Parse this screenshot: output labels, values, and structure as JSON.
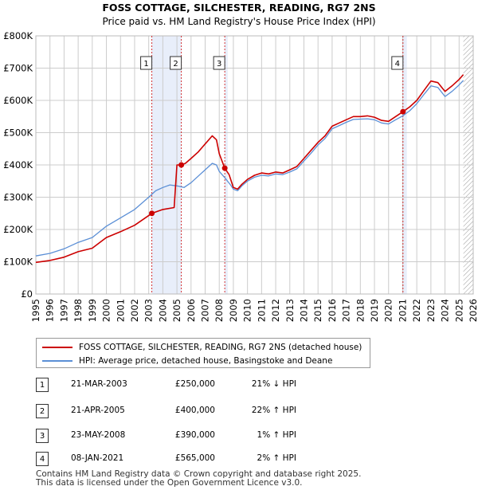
{
  "chart_data": {
    "type": "line",
    "title": "FOSS COTTAGE, SILCHESTER, READING, RG7 2NS",
    "subtitle": "Price paid vs. HM Land Registry's House Price Index (HPI)",
    "x_range": [
      1995,
      2026
    ],
    "ylim": [
      0,
      800000
    ],
    "y_ticks": [
      0,
      100000,
      200000,
      300000,
      400000,
      500000,
      600000,
      700000,
      800000
    ],
    "y_tick_labels": [
      "£0",
      "£100K",
      "£200K",
      "£300K",
      "£400K",
      "£500K",
      "£600K",
      "£700K",
      "£800K"
    ],
    "x_ticks": [
      1995,
      1996,
      1997,
      1998,
      1999,
      2000,
      2001,
      2002,
      2003,
      2004,
      2005,
      2006,
      2007,
      2008,
      2009,
      2010,
      2011,
      2012,
      2013,
      2014,
      2015,
      2016,
      2017,
      2018,
      2019,
      2020,
      2021,
      2022,
      2023,
      2024,
      2025,
      2026
    ],
    "x_tick_labels": [
      "1995",
      "1996",
      "1997",
      "1998",
      "1999",
      "2000",
      "2001",
      "2002",
      "2003",
      "2004",
      "2005",
      "2006",
      "2007",
      "2008",
      "2009",
      "2010",
      "2011",
      "2012",
      "2013",
      "2014",
      "2015",
      "2016",
      "2017",
      "2018",
      "2019",
      "2020",
      "2021",
      "2022",
      "2023",
      "2024",
      "2025",
      "2026"
    ],
    "grid": true,
    "series": [
      {
        "name": "FOSS COTTAGE, SILCHESTER, READING, RG7 2NS (detached house)",
        "color": "#cc0000",
        "x": [
          1995.0,
          1996.0,
          1997.0,
          1998.0,
          1999.0,
          2000.0,
          2001.0,
          2002.0,
          2003.22,
          2004.0,
          2004.8,
          2005.0,
          2005.31,
          2005.6,
          2006.0,
          2006.5,
          2007.0,
          2007.5,
          2007.8,
          2008.0,
          2008.39,
          2008.7,
          2009.0,
          2009.3,
          2009.6,
          2010.0,
          2010.5,
          2011.0,
          2011.5,
          2012.0,
          2012.5,
          2013.0,
          2013.5,
          2014.0,
          2014.5,
          2015.0,
          2015.5,
          2016.0,
          2016.5,
          2017.0,
          2017.5,
          2018.0,
          2018.5,
          2019.0,
          2019.5,
          2020.0,
          2020.5,
          2021.02,
          2021.5,
          2022.0,
          2022.5,
          2023.0,
          2023.5,
          2024.0,
          2024.5,
          2025.0,
          2025.3
        ],
        "values": [
          98000,
          104000,
          114000,
          131000,
          142000,
          175000,
          193000,
          213000,
          250000,
          262000,
          268000,
          400000,
          400000,
          405000,
          420000,
          440000,
          465000,
          490000,
          478000,
          435000,
          390000,
          370000,
          330000,
          325000,
          340000,
          355000,
          368000,
          375000,
          372000,
          378000,
          375000,
          385000,
          395000,
          420000,
          445000,
          470000,
          490000,
          520000,
          530000,
          540000,
          550000,
          550000,
          552000,
          548000,
          538000,
          535000,
          550000,
          565000,
          580000,
          600000,
          630000,
          660000,
          655000,
          628000,
          645000,
          665000,
          680000
        ]
      },
      {
        "name": "HPI: Average price, detached house, Basingstoke and Deane",
        "color": "#5b8fd6",
        "x": [
          1995.0,
          1996.0,
          1997.0,
          1998.0,
          1999.0,
          2000.0,
          2001.0,
          2002.0,
          2003.0,
          2003.5,
          2004.0,
          2004.5,
          2005.0,
          2005.5,
          2006.0,
          2006.5,
          2007.0,
          2007.5,
          2007.8,
          2008.0,
          2008.4,
          2008.8,
          2009.0,
          2009.3,
          2009.6,
          2010.0,
          2010.5,
          2011.0,
          2011.5,
          2012.0,
          2012.5,
          2013.0,
          2013.5,
          2014.0,
          2014.5,
          2015.0,
          2015.5,
          2016.0,
          2016.5,
          2017.0,
          2017.5,
          2018.0,
          2018.5,
          2019.0,
          2019.5,
          2020.0,
          2020.5,
          2021.0,
          2021.5,
          2022.0,
          2022.5,
          2023.0,
          2023.5,
          2024.0,
          2024.5,
          2025.0,
          2025.3
        ],
        "values": [
          118000,
          126000,
          140000,
          160000,
          175000,
          210000,
          236000,
          262000,
          300000,
          320000,
          330000,
          338000,
          335000,
          330000,
          345000,
          365000,
          385000,
          405000,
          400000,
          380000,
          360000,
          338000,
          325000,
          320000,
          335000,
          350000,
          362000,
          368000,
          366000,
          372000,
          370000,
          378000,
          388000,
          412000,
          436000,
          462000,
          482000,
          512000,
          522000,
          532000,
          541000,
          542000,
          543000,
          540000,
          530000,
          527000,
          540000,
          552000,
          568000,
          590000,
          618000,
          645000,
          640000,
          612000,
          628000,
          648000,
          662000
        ]
      }
    ],
    "transactions": [
      {
        "label": "1",
        "date": "21-MAR-2003",
        "x": 2003.22,
        "price": 250000,
        "price_text": "£250,000",
        "hpi_text": "21% ↓ HPI"
      },
      {
        "label": "2",
        "date": "21-APR-2005",
        "x": 2005.31,
        "price": 400000,
        "price_text": "£400,000",
        "hpi_text": "22% ↑ HPI"
      },
      {
        "label": "3",
        "date": "23-MAY-2008",
        "x": 2008.39,
        "price": 390000,
        "price_text": "£390,000",
        "hpi_text": "1% ↑ HPI"
      },
      {
        "label": "4",
        "date": "08-JAN-2021",
        "x": 2021.02,
        "price": 565000,
        "price_text": "£565,000",
        "hpi_text": "2% ↑ HPI"
      }
    ],
    "shaded_ranges": [
      [
        2003.22,
        2005.31
      ],
      [
        2008.39,
        2008.6
      ],
      [
        2021.02,
        2021.3
      ]
    ],
    "hatched_from": 2025.3
  },
  "footer": {
    "line1": "Contains HM Land Registry data © Crown copyright and database right 2025.",
    "line2": "This data is licensed under the Open Government Licence v3.0."
  },
  "colors": {
    "price_line": "#cc0000",
    "hpi_line": "#5b8fd6",
    "shade": "#e8eefa",
    "grid": "#cccccc"
  }
}
